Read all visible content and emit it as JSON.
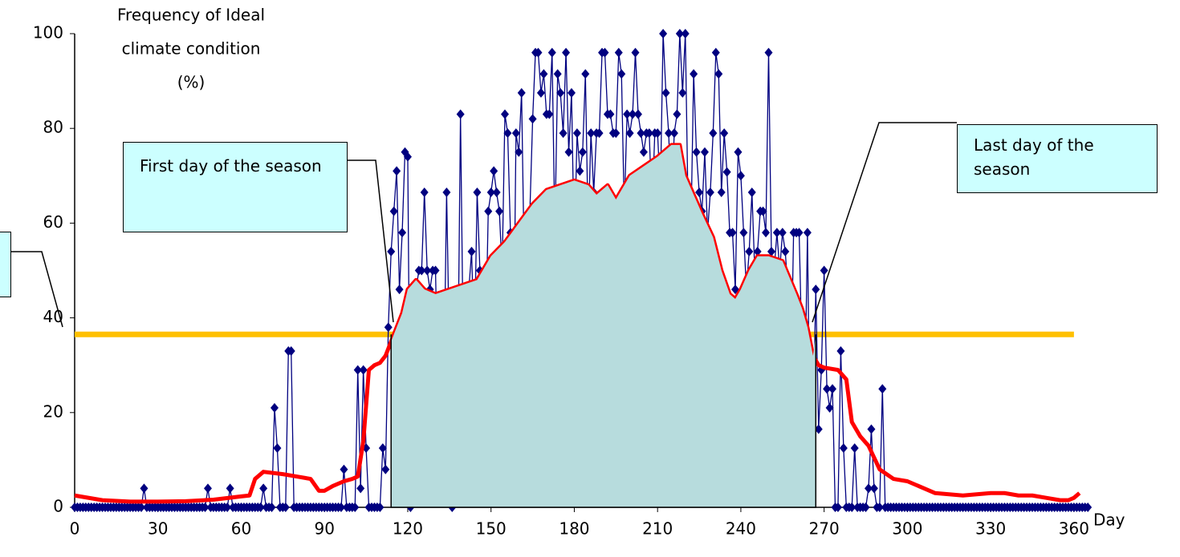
{
  "chart_data": {
    "type": "line",
    "y_label_lines": [
      "Frequency of Ideal",
      "climate condition",
      "(%)"
    ],
    "x_label": "Day",
    "xlim": [
      0,
      365
    ],
    "ylim": [
      0,
      100
    ],
    "xticks": [
      0,
      30,
      60,
      90,
      120,
      150,
      180,
      210,
      240,
      270,
      300,
      330,
      360
    ],
    "yticks": [
      0,
      20,
      40,
      60,
      80,
      100
    ],
    "series": [
      {
        "color": "#000080",
        "marker": "diamond",
        "x": [
          0,
          1,
          2,
          3,
          4,
          5,
          6,
          7,
          8,
          9,
          10,
          11,
          12,
          13,
          14,
          15,
          16,
          17,
          18,
          19,
          20,
          21,
          22,
          23,
          24,
          25,
          26,
          27,
          28,
          29,
          30,
          31,
          32,
          33,
          34,
          35,
          36,
          37,
          38,
          39,
          40,
          41,
          42,
          43,
          44,
          45,
          46,
          47,
          48,
          49,
          50,
          51,
          52,
          53,
          54,
          55,
          56,
          57,
          58,
          59,
          60,
          61,
          62,
          63,
          64,
          65,
          66,
          67,
          68,
          69,
          70,
          71,
          72,
          73,
          74,
          75,
          76,
          77,
          78,
          79,
          80,
          81,
          82,
          83,
          84,
          85,
          86,
          87,
          88,
          89,
          90,
          91,
          92,
          93,
          94,
          95,
          96,
          97,
          98,
          99,
          100,
          101,
          102,
          103,
          104,
          105,
          106,
          107,
          108,
          109,
          110,
          111,
          112,
          113,
          114,
          115,
          116,
          117,
          118,
          119,
          120,
          121,
          122,
          123,
          124,
          125,
          126,
          127,
          128,
          129,
          130,
          131,
          132,
          133,
          134,
          135,
          136,
          137,
          138,
          139,
          140,
          141,
          142,
          143,
          144,
          145,
          146,
          147,
          148,
          149,
          150,
          151,
          152,
          153,
          154,
          155,
          156,
          157,
          158,
          159,
          160,
          161,
          162,
          163,
          164,
          165,
          166,
          167,
          168,
          169,
          170,
          171,
          172,
          173,
          174,
          175,
          176,
          177,
          178,
          179,
          180,
          181,
          182,
          183,
          184,
          185,
          186,
          187,
          188,
          189,
          190,
          191,
          192,
          193,
          194,
          195,
          196,
          197,
          198,
          199,
          200,
          201,
          202,
          203,
          204,
          205,
          206,
          207,
          208,
          209,
          210,
          211,
          212,
          213,
          214,
          215,
          216,
          217,
          218,
          219,
          220,
          221,
          222,
          223,
          224,
          225,
          226,
          227,
          228,
          229,
          230,
          231,
          232,
          233,
          234,
          235,
          236,
          237,
          238,
          239,
          240,
          241,
          242,
          243,
          244,
          245,
          246,
          247,
          248,
          249,
          250,
          251,
          252,
          253,
          254,
          255,
          256,
          257,
          258,
          259,
          260,
          261,
          262,
          263,
          264,
          265,
          266,
          267,
          268,
          269,
          270,
          271,
          272,
          273,
          274,
          275,
          276,
          277,
          278,
          279,
          280,
          281,
          282,
          283,
          284,
          285,
          286,
          287,
          288,
          289,
          290,
          291,
          292,
          293,
          294,
          295,
          296,
          297,
          298,
          299,
          300,
          301,
          302,
          303,
          304,
          305,
          306,
          307,
          308,
          309,
          310,
          311,
          312,
          313,
          314,
          315,
          316,
          317,
          318,
          319,
          320,
          321,
          322,
          323,
          324,
          325,
          326,
          327,
          328,
          329,
          330,
          331,
          332,
          333,
          334,
          335,
          336,
          337,
          338,
          339,
          340,
          341,
          342,
          343,
          344,
          345,
          346,
          347,
          348,
          349,
          350,
          351,
          352,
          353,
          354,
          355,
          356,
          357,
          358,
          359,
          360,
          361,
          362,
          363,
          364,
          365
        ],
        "values": [
          0,
          0,
          0,
          0,
          0,
          0,
          0,
          0,
          0,
          0,
          0,
          0,
          0,
          0,
          0,
          0,
          0,
          0,
          0,
          0,
          0,
          0,
          0,
          0,
          0,
          4,
          0,
          0,
          0,
          0,
          0,
          0,
          0,
          0,
          0,
          0,
          0,
          0,
          0,
          0,
          0,
          0,
          0,
          0,
          0,
          0,
          0,
          0,
          4,
          0,
          0,
          0,
          0,
          0,
          0,
          0,
          4,
          0,
          0,
          0,
          0,
          0,
          0,
          0,
          0,
          0,
          0,
          0,
          4,
          0,
          0,
          0,
          21,
          12.5,
          0,
          0,
          0,
          33,
          33,
          0,
          0,
          0,
          0,
          0,
          0,
          0,
          0,
          0,
          0,
          0,
          0,
          0,
          0,
          0,
          0,
          0,
          0,
          8,
          0,
          0,
          0,
          0,
          29,
          4,
          29,
          12.5,
          0,
          0,
          0,
          0,
          0,
          12.5,
          8,
          38,
          54,
          62.5,
          71,
          46,
          58,
          75,
          74,
          0,
          21,
          46,
          50,
          50,
          66.5,
          50,
          46,
          50,
          50,
          21,
          12.5,
          25,
          66.5,
          33,
          0,
          21,
          25,
          83,
          33,
          8,
          46,
          54,
          33,
          66.5,
          50,
          25,
          33,
          62.5,
          66.5,
          71,
          66.5,
          62.5,
          50,
          83,
          79,
          58,
          25,
          79,
          75,
          87.5,
          50,
          21,
          62.5,
          82,
          96,
          96,
          87.5,
          91.5,
          83,
          83,
          96,
          58,
          91.5,
          87.5,
          79,
          96,
          75,
          87.5,
          54,
          79,
          71,
          75,
          91.5,
          58,
          79,
          66.5,
          79,
          79,
          96,
          96,
          83,
          83,
          79,
          79,
          96,
          91.5,
          62.5,
          83,
          79,
          83,
          96,
          83,
          79,
          75,
          79,
          79,
          62.5,
          79,
          79,
          66.5,
          100,
          87.5,
          79,
          62.5,
          79,
          83,
          100,
          87.5,
          100,
          62.5,
          58,
          91.5,
          75,
          66.5,
          62.5,
          75,
          58,
          66.5,
          79,
          96,
          91.5,
          66.5,
          79,
          70.8,
          58,
          58,
          46,
          75,
          70,
          58,
          46,
          54,
          66.5,
          50,
          54,
          62.5,
          62.5,
          58,
          96,
          54,
          50,
          58,
          50,
          58,
          54,
          45.5,
          25,
          58,
          58,
          58,
          33,
          21,
          58,
          8,
          16.5,
          46,
          16.5,
          29,
          50,
          25,
          21,
          25,
          0,
          0,
          33,
          12.5,
          0,
          0,
          0,
          12.5,
          0,
          0,
          0,
          0,
          4,
          16.5,
          4,
          0,
          0,
          25,
          0,
          0,
          0,
          0,
          0,
          0,
          0,
          0,
          0,
          0,
          0,
          0,
          0,
          0,
          0,
          0,
          0,
          0,
          0,
          0,
          0,
          0,
          0,
          0,
          0,
          0,
          0,
          0,
          0,
          0,
          0,
          0,
          0,
          0,
          0,
          0,
          0,
          0,
          0,
          0,
          0,
          0,
          0,
          0,
          0,
          0,
          0,
          0,
          0,
          0,
          0,
          0,
          0,
          0,
          0,
          0,
          0,
          0,
          0,
          0,
          0,
          0,
          0,
          0,
          0,
          0,
          0,
          0,
          0,
          0,
          0,
          0,
          0,
          0
        ]
      },
      {
        "color": "#ff0000",
        "x": [
          0,
          10,
          20,
          30,
          40,
          50,
          60,
          63,
          65,
          68,
          75,
          80,
          85,
          88,
          90,
          93,
          97,
          100,
          102,
          104,
          106,
          108,
          110,
          112,
          114,
          116,
          118,
          120,
          123,
          126,
          130,
          135,
          140,
          145,
          150,
          155,
          160,
          165,
          170,
          175,
          180,
          185,
          188,
          192,
          195,
          198,
          200,
          205,
          210,
          215,
          218,
          220,
          223,
          226,
          230,
          233,
          236,
          238,
          240,
          243,
          246,
          250,
          255,
          260,
          262,
          264,
          266,
          268,
          270,
          275,
          278,
          280,
          283,
          286,
          290,
          295,
          300,
          310,
          320,
          330,
          335,
          340,
          345,
          350,
          355,
          358,
          360,
          362
        ],
        "values": [
          2.5,
          1.5,
          1.2,
          1.2,
          1.3,
          1.6,
          2.3,
          2.5,
          6,
          7.5,
          7,
          6.5,
          6,
          3.5,
          3.5,
          4.5,
          5.5,
          6,
          6.5,
          14,
          29,
          30,
          30.5,
          32,
          35,
          38,
          41,
          46,
          48,
          46,
          45,
          46,
          47,
          48,
          53,
          56,
          60,
          64,
          67,
          68,
          69,
          68,
          66,
          68,
          65,
          68,
          70,
          72,
          74,
          76.5,
          76.5,
          70,
          66,
          62,
          57,
          50,
          45,
          44,
          46,
          50,
          53,
          53,
          52,
          45,
          42,
          38,
          32,
          30,
          29.5,
          29,
          27,
          18,
          15,
          13,
          8,
          6,
          5.5,
          3,
          2.5,
          3,
          3,
          2.5,
          2.5,
          2,
          1.5,
          1.5,
          2,
          3
        ]
      }
    ],
    "threshold": {
      "value": 36.5,
      "x": [
        0,
        360
      ],
      "color": "#ffc000"
    },
    "season": {
      "start": 114,
      "end": 267,
      "color": "#b7dcdd"
    },
    "annotations": {
      "first": "First day of the season",
      "last": "Last day of the season"
    }
  }
}
